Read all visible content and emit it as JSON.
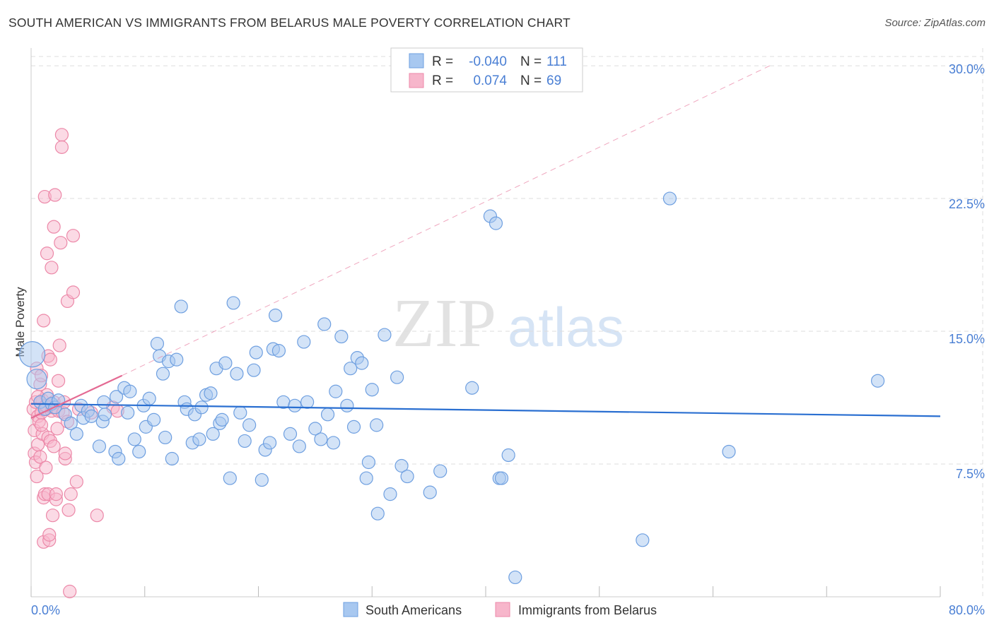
{
  "title": "SOUTH AMERICAN VS IMMIGRANTS FROM BELARUS MALE POVERTY CORRELATION CHART",
  "source": "Source: ZipAtlas.com",
  "watermark": {
    "zip": "ZIP",
    "atlas": "atlas"
  },
  "colors": {
    "blue_fill": "#a8c8f0",
    "blue_stroke": "#6e9fe0",
    "blue_line": "#2a6fd1",
    "pink_fill": "#f7b6cb",
    "pink_stroke": "#ec88a8",
    "pink_line": "#e46a93",
    "tick_text": "#4a7fd4",
    "grid": "#dddddd"
  },
  "legend": {
    "rows": [
      {
        "r_label": "R =",
        "r_value": "-0.040",
        "n_label": "N =",
        "n_value": "111",
        "color": "blue"
      },
      {
        "r_label": "R =",
        "r_value": "0.074",
        "n_label": "N =",
        "n_value": "69",
        "color": "pink"
      }
    ]
  },
  "chart_data": {
    "type": "scatter",
    "title": "SOUTH AMERICAN VS IMMIGRANTS FROM BELARUS MALE POVERTY CORRELATION CHART",
    "xlabel": "",
    "ylabel": "Male Poverty",
    "xlim": [
      0,
      80
    ],
    "ylim": [
      0,
      31
    ],
    "x_tick_labels": [
      "0.0%",
      "80.0%"
    ],
    "y_ticks": [
      7.5,
      15.0,
      22.5,
      30.0
    ],
    "y_tick_labels": [
      "7.5%",
      "15.0%",
      "22.5%",
      "30.0%"
    ],
    "grid": true,
    "legend_position": "top-center",
    "series": [
      {
        "name": "South Americans",
        "color": "blue",
        "trend": {
          "x": [
            0,
            80
          ],
          "y": [
            10.9,
            10.2
          ],
          "style": "solid"
        },
        "points": [
          [
            0.1,
            13.7
          ],
          [
            0.5,
            12.3
          ],
          [
            0.8,
            11.0
          ],
          [
            1.2,
            10.6
          ],
          [
            1.5,
            11.2
          ],
          [
            1.8,
            10.9
          ],
          [
            2.1,
            10.7
          ],
          [
            2.4,
            11.1
          ],
          [
            3.0,
            10.3
          ],
          [
            3.5,
            9.8
          ],
          [
            4.0,
            9.2
          ],
          [
            4.4,
            10.8
          ],
          [
            4.6,
            10.1
          ],
          [
            5.0,
            10.5
          ],
          [
            5.3,
            10.2
          ],
          [
            6.0,
            8.5
          ],
          [
            6.3,
            9.9
          ],
          [
            6.4,
            11.0
          ],
          [
            6.5,
            10.3
          ],
          [
            7.4,
            8.2
          ],
          [
            7.5,
            11.3
          ],
          [
            7.7,
            7.8
          ],
          [
            8.2,
            11.8
          ],
          [
            8.5,
            10.4
          ],
          [
            8.7,
            11.6
          ],
          [
            9.1,
            8.9
          ],
          [
            9.5,
            8.2
          ],
          [
            9.9,
            10.8
          ],
          [
            10.1,
            9.6
          ],
          [
            10.4,
            11.2
          ],
          [
            10.8,
            10.0
          ],
          [
            11.1,
            14.3
          ],
          [
            11.3,
            13.6
          ],
          [
            11.6,
            12.6
          ],
          [
            11.8,
            9.0
          ],
          [
            12.1,
            13.3
          ],
          [
            12.4,
            7.8
          ],
          [
            12.8,
            13.4
          ],
          [
            13.2,
            16.4
          ],
          [
            13.5,
            11.0
          ],
          [
            13.7,
            10.6
          ],
          [
            14.2,
            8.7
          ],
          [
            14.4,
            10.3
          ],
          [
            14.8,
            8.9
          ],
          [
            15.0,
            10.7
          ],
          [
            15.4,
            11.4
          ],
          [
            15.8,
            11.5
          ],
          [
            16.0,
            9.2
          ],
          [
            16.3,
            12.9
          ],
          [
            16.6,
            9.8
          ],
          [
            16.8,
            10.0
          ],
          [
            17.1,
            13.2
          ],
          [
            17.5,
            6.7
          ],
          [
            17.8,
            16.6
          ],
          [
            18.1,
            12.6
          ],
          [
            18.4,
            10.4
          ],
          [
            18.8,
            8.8
          ],
          [
            19.2,
            9.7
          ],
          [
            19.6,
            12.8
          ],
          [
            19.8,
            13.8
          ],
          [
            20.3,
            6.6
          ],
          [
            20.6,
            8.3
          ],
          [
            21.0,
            8.7
          ],
          [
            21.3,
            14.0
          ],
          [
            21.5,
            15.9
          ],
          [
            21.8,
            13.9
          ],
          [
            22.2,
            11.0
          ],
          [
            22.8,
            9.2
          ],
          [
            23.2,
            10.8
          ],
          [
            23.6,
            8.5
          ],
          [
            24.0,
            14.4
          ],
          [
            24.3,
            11.0
          ],
          [
            25.0,
            9.5
          ],
          [
            25.5,
            8.9
          ],
          [
            25.8,
            15.4
          ],
          [
            26.1,
            10.3
          ],
          [
            26.6,
            8.7
          ],
          [
            26.8,
            11.6
          ],
          [
            27.3,
            14.7
          ],
          [
            27.8,
            10.8
          ],
          [
            28.1,
            12.9
          ],
          [
            28.4,
            9.6
          ],
          [
            28.7,
            13.5
          ],
          [
            29.1,
            13.2
          ],
          [
            29.5,
            6.7
          ],
          [
            29.7,
            7.6
          ],
          [
            30.0,
            11.7
          ],
          [
            30.4,
            9.7
          ],
          [
            30.5,
            4.7
          ],
          [
            31.1,
            14.8
          ],
          [
            31.6,
            5.8
          ],
          [
            32.2,
            12.4
          ],
          [
            32.6,
            7.4
          ],
          [
            33.1,
            6.8
          ],
          [
            35.1,
            5.9
          ],
          [
            36.0,
            7.1
          ],
          [
            38.8,
            11.8
          ],
          [
            40.4,
            21.5
          ],
          [
            40.9,
            21.1
          ],
          [
            41.2,
            6.7
          ],
          [
            41.4,
            6.7
          ],
          [
            42.0,
            8.0
          ],
          [
            42.6,
            1.1
          ],
          [
            61.4,
            8.2
          ],
          [
            74.5,
            12.2
          ],
          [
            53.8,
            3.2
          ],
          [
            56.2,
            22.5
          ]
        ]
      },
      {
        "name": "Immigrants from Belarus",
        "color": "pink",
        "trend": {
          "x": [
            0,
            8
          ],
          "y": [
            10.1,
            12.5
          ],
          "style": "solid",
          "extended": {
            "x": [
              8,
              65
            ],
            "y": [
              12.5,
              30.0
            ],
            "style": "dashed"
          }
        },
        "points": [
          [
            0.2,
            10.6
          ],
          [
            0.3,
            9.4
          ],
          [
            0.3,
            8.1
          ],
          [
            0.4,
            7.6
          ],
          [
            0.5,
            6.8
          ],
          [
            0.5,
            12.9
          ],
          [
            0.6,
            10.2
          ],
          [
            0.6,
            8.6
          ],
          [
            0.7,
            9.9
          ],
          [
            0.8,
            7.9
          ],
          [
            0.8,
            12.0
          ],
          [
            0.9,
            12.5
          ],
          [
            0.9,
            10.4
          ],
          [
            1.0,
            11.1
          ],
          [
            1.0,
            9.2
          ],
          [
            1.1,
            15.6
          ],
          [
            1.1,
            5.6
          ],
          [
            1.1,
            3.1
          ],
          [
            1.2,
            5.8
          ],
          [
            1.2,
            22.6
          ],
          [
            1.3,
            10.6
          ],
          [
            1.3,
            7.3
          ],
          [
            1.4,
            19.4
          ],
          [
            1.4,
            11.4
          ],
          [
            1.5,
            13.6
          ],
          [
            1.5,
            9.0
          ],
          [
            1.5,
            5.8
          ],
          [
            1.6,
            3.2
          ],
          [
            1.6,
            3.5
          ],
          [
            1.7,
            13.4
          ],
          [
            1.7,
            8.8
          ],
          [
            1.8,
            18.6
          ],
          [
            1.8,
            10.5
          ],
          [
            1.9,
            10.7
          ],
          [
            1.9,
            4.6
          ],
          [
            2.0,
            20.9
          ],
          [
            2.0,
            11.0
          ],
          [
            2.1,
            22.7
          ],
          [
            2.2,
            5.5
          ],
          [
            2.2,
            5.8
          ],
          [
            2.3,
            9.5
          ],
          [
            2.4,
            12.2
          ],
          [
            2.4,
            10.5
          ],
          [
            2.5,
            14.2
          ],
          [
            2.6,
            20.0
          ],
          [
            2.7,
            26.1
          ],
          [
            2.7,
            25.4
          ],
          [
            2.8,
            10.4
          ],
          [
            2.9,
            11.0
          ],
          [
            3.0,
            7.8
          ],
          [
            3.0,
            8.1
          ],
          [
            3.2,
            16.7
          ],
          [
            3.2,
            9.9
          ],
          [
            3.3,
            4.9
          ],
          [
            3.4,
            0.3
          ],
          [
            3.5,
            5.8
          ],
          [
            3.7,
            17.2
          ],
          [
            3.7,
            20.4
          ],
          [
            4.0,
            6.5
          ],
          [
            4.2,
            10.6
          ],
          [
            5.3,
            10.4
          ],
          [
            5.8,
            4.6
          ],
          [
            7.2,
            10.7
          ],
          [
            7.6,
            10.5
          ],
          [
            0.4,
            11.0
          ],
          [
            0.6,
            11.3
          ],
          [
            0.9,
            9.7
          ],
          [
            1.3,
            10.8
          ],
          [
            2.0,
            8.5
          ]
        ]
      }
    ]
  },
  "bottom_legend": {
    "items": [
      "South Americans",
      "Immigrants from Belarus"
    ]
  }
}
